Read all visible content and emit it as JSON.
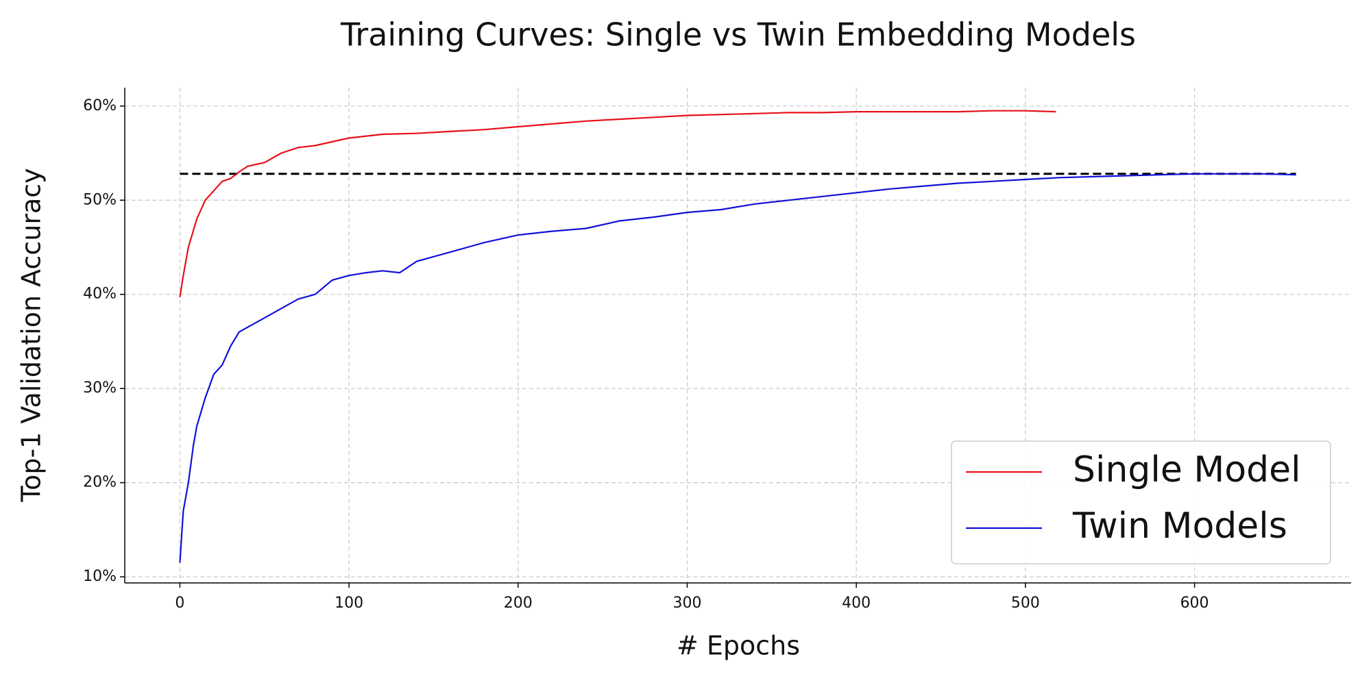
{
  "chart_data": {
    "type": "line",
    "title": "Training Curves: Single vs Twin Embedding Models",
    "x_label": "# Epochs",
    "y_label": "Top-1 Validation Accuracy",
    "xlim": [
      -32.6,
      692.6
    ],
    "xticks": [
      0,
      100,
      200,
      300,
      400,
      500,
      600
    ],
    "ylim": [
      9.35,
      61.95
    ],
    "yticks": [
      {
        "value": 10,
        "label": "10%"
      },
      {
        "value": 20,
        "label": "20%"
      },
      {
        "value": 30,
        "label": "30%"
      },
      {
        "value": 40,
        "label": "40%"
      },
      {
        "value": 50,
        "label": "50%"
      },
      {
        "value": 60,
        "label": "60%"
      }
    ],
    "grid": true,
    "legend": "lower right",
    "reference_line": {
      "y": 52.8,
      "x": [
        0,
        660
      ],
      "color": "#000000"
    },
    "series": [
      {
        "name": "Single Model",
        "color": "#e8101a",
        "x": [
          0,
          2,
          5,
          10,
          15,
          20,
          25,
          30,
          35,
          40,
          50,
          60,
          70,
          80,
          90,
          100,
          120,
          140,
          160,
          180,
          200,
          220,
          240,
          260,
          280,
          300,
          320,
          340,
          360,
          380,
          400,
          420,
          440,
          460,
          480,
          500,
          518
        ],
        "values": [
          39.7,
          42,
          45,
          48,
          50,
          51,
          52,
          52.3,
          53,
          53.6,
          54,
          55,
          55.6,
          55.8,
          56.2,
          56.6,
          57,
          57.1,
          57.3,
          57.5,
          57.8,
          58.1,
          58.4,
          58.6,
          58.8,
          59,
          59.1,
          59.2,
          59.3,
          59.3,
          59.4,
          59.4,
          59.4,
          59.4,
          59.5,
          59.5,
          59.4
        ]
      },
      {
        "name": "Twin Models",
        "color": "#1010d8",
        "x": [
          0,
          2,
          5,
          8,
          10,
          15,
          20,
          25,
          30,
          35,
          40,
          50,
          60,
          70,
          80,
          90,
          100,
          110,
          120,
          130,
          140,
          150,
          160,
          170,
          180,
          200,
          220,
          240,
          260,
          280,
          300,
          320,
          340,
          360,
          380,
          400,
          420,
          440,
          460,
          480,
          500,
          520,
          540,
          560,
          580,
          600,
          620,
          640,
          660
        ],
        "values": [
          11.5,
          17,
          20,
          24,
          26,
          29,
          31.5,
          32.5,
          34.5,
          36,
          36.5,
          37.5,
          38.5,
          39.5,
          40,
          41.5,
          42,
          42.3,
          42.5,
          42.3,
          43.5,
          44,
          44.5,
          45,
          45.5,
          46.3,
          46.7,
          47,
          47.8,
          48.2,
          48.7,
          49,
          49.6,
          50,
          50.4,
          50.8,
          51.2,
          51.5,
          51.8,
          52,
          52.2,
          52.4,
          52.5,
          52.6,
          52.7,
          52.8,
          52.8,
          52.8,
          52.7
        ]
      }
    ]
  }
}
